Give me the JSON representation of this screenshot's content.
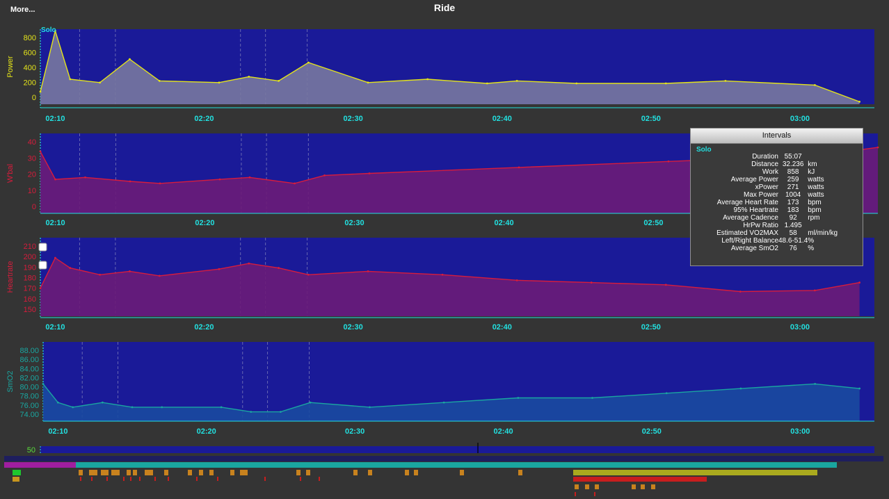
{
  "app": {
    "title": "Ride",
    "more_label": "More..."
  },
  "charts_common": {
    "x_ticks": [
      "02:10",
      "02:20",
      "02:30",
      "02:40",
      "02:50",
      "03:00"
    ],
    "interval_label": "Solo"
  },
  "chart_data": [
    {
      "type": "area",
      "name": "power",
      "ylabel": "Power",
      "ylim": [
        0,
        900
      ],
      "y_ticks": [
        "800",
        "600",
        "400",
        "200",
        "0"
      ],
      "colors": {
        "line": "#e4e41a",
        "fill": "#7878a0",
        "label": "#e4e41a"
      },
      "x": [
        "02:08",
        "02:09",
        "02:10",
        "02:12",
        "02:14",
        "02:16",
        "02:20",
        "02:22",
        "02:24",
        "02:26",
        "02:30",
        "02:34",
        "02:38",
        "02:40",
        "02:44",
        "02:50",
        "02:54",
        "03:00",
        "03:03"
      ],
      "values": [
        150,
        880,
        300,
        260,
        540,
        280,
        260,
        330,
        280,
        500,
        260,
        300,
        250,
        280,
        250,
        250,
        280,
        230,
        30
      ]
    },
    {
      "type": "area",
      "name": "w-bal",
      "ylabel": "W'bal",
      "ylim": [
        0,
        40
      ],
      "y_ticks": [
        "40",
        "30",
        "20",
        "10",
        "0"
      ],
      "colors": {
        "line": "#d81c3c",
        "fill": "#6c1c78",
        "label": "#d81c3c"
      },
      "x": [
        "02:08",
        "02:09",
        "02:11",
        "02:14",
        "02:16",
        "02:20",
        "02:22",
        "02:25",
        "02:27",
        "02:30",
        "02:40",
        "02:50",
        "03:00",
        "03:04"
      ],
      "values": [
        31,
        17,
        18,
        16,
        15,
        17,
        18,
        15,
        19,
        20,
        23,
        26,
        29,
        33
      ]
    },
    {
      "type": "area",
      "name": "heartrate",
      "ylabel": "Heartrate",
      "ylim": [
        140,
        210
      ],
      "y_ticks": [
        "210",
        "200",
        "190",
        "180",
        "170",
        "160",
        "150"
      ],
      "colors": {
        "line": "#d81c3c",
        "fill": "#6c1c78",
        "label": "#d81c3c"
      },
      "x": [
        "02:08",
        "02:09",
        "02:10",
        "02:12",
        "02:14",
        "02:16",
        "02:20",
        "02:22",
        "02:24",
        "02:26",
        "02:30",
        "02:35",
        "02:40",
        "02:45",
        "02:50",
        "02:55",
        "03:00",
        "03:03"
      ],
      "values": [
        165,
        192,
        183,
        177,
        180,
        176,
        182,
        187,
        183,
        177,
        180,
        177,
        172,
        170,
        168,
        162,
        163,
        170
      ]
    },
    {
      "type": "area",
      "name": "smo2",
      "ylabel": "SmO2",
      "ylim": [
        72,
        89
      ],
      "y_ticks": [
        "88.00",
        "86.00",
        "84.00",
        "82.00",
        "80.00",
        "78.00",
        "76.00",
        "74.00"
      ],
      "colors": {
        "line": "#1aa6a0",
        "fill": "#1a4aa0",
        "label": "#1aa6a0"
      },
      "x": [
        "02:08",
        "02:09",
        "02:10",
        "02:12",
        "02:14",
        "02:16",
        "02:20",
        "02:22",
        "02:24",
        "02:26",
        "02:30",
        "02:35",
        "02:40",
        "02:45",
        "02:50",
        "02:55",
        "03:00",
        "03:03"
      ],
      "values": [
        80,
        76,
        75,
        76,
        75,
        75,
        75,
        74,
        74,
        76,
        75,
        76,
        77,
        77,
        78,
        79,
        80,
        79
      ]
    }
  ],
  "overview": {
    "tick": "50"
  },
  "intervals": {
    "header": "Intervals",
    "name": "Solo",
    "metrics": [
      {
        "label": "Duration",
        "value": "55:07",
        "unit": ""
      },
      {
        "label": "Distance",
        "value": "32.236",
        "unit": "km"
      },
      {
        "label": "Work",
        "value": "858",
        "unit": "kJ"
      },
      {
        "label": "Average Power",
        "value": "259",
        "unit": "watts"
      },
      {
        "label": "xPower",
        "value": "271",
        "unit": "watts"
      },
      {
        "label": "Max Power",
        "value": "1004",
        "unit": "watts"
      },
      {
        "label": "Average Heart Rate",
        "value": "173",
        "unit": "bpm"
      },
      {
        "label": "95% Heartrate",
        "value": "183",
        "unit": "bpm"
      },
      {
        "label": "Average Cadence",
        "value": "92",
        "unit": "rpm"
      },
      {
        "label": "HrPw Ratio",
        "value": "1.495",
        "unit": ""
      },
      {
        "label": "Estimated VO2MAX",
        "value": "58",
        "unit": "ml/min/kg"
      },
      {
        "label": "Left/Right Balance",
        "value": "48.6-51.4",
        "unit": "%"
      },
      {
        "label": "Average SmO2",
        "value": "76",
        "unit": "%"
      }
    ]
  },
  "colors": {
    "background": "#343434",
    "plot_bg": "#1a1a98",
    "axis": "#22e0e0",
    "accent": "#22e0e0"
  }
}
